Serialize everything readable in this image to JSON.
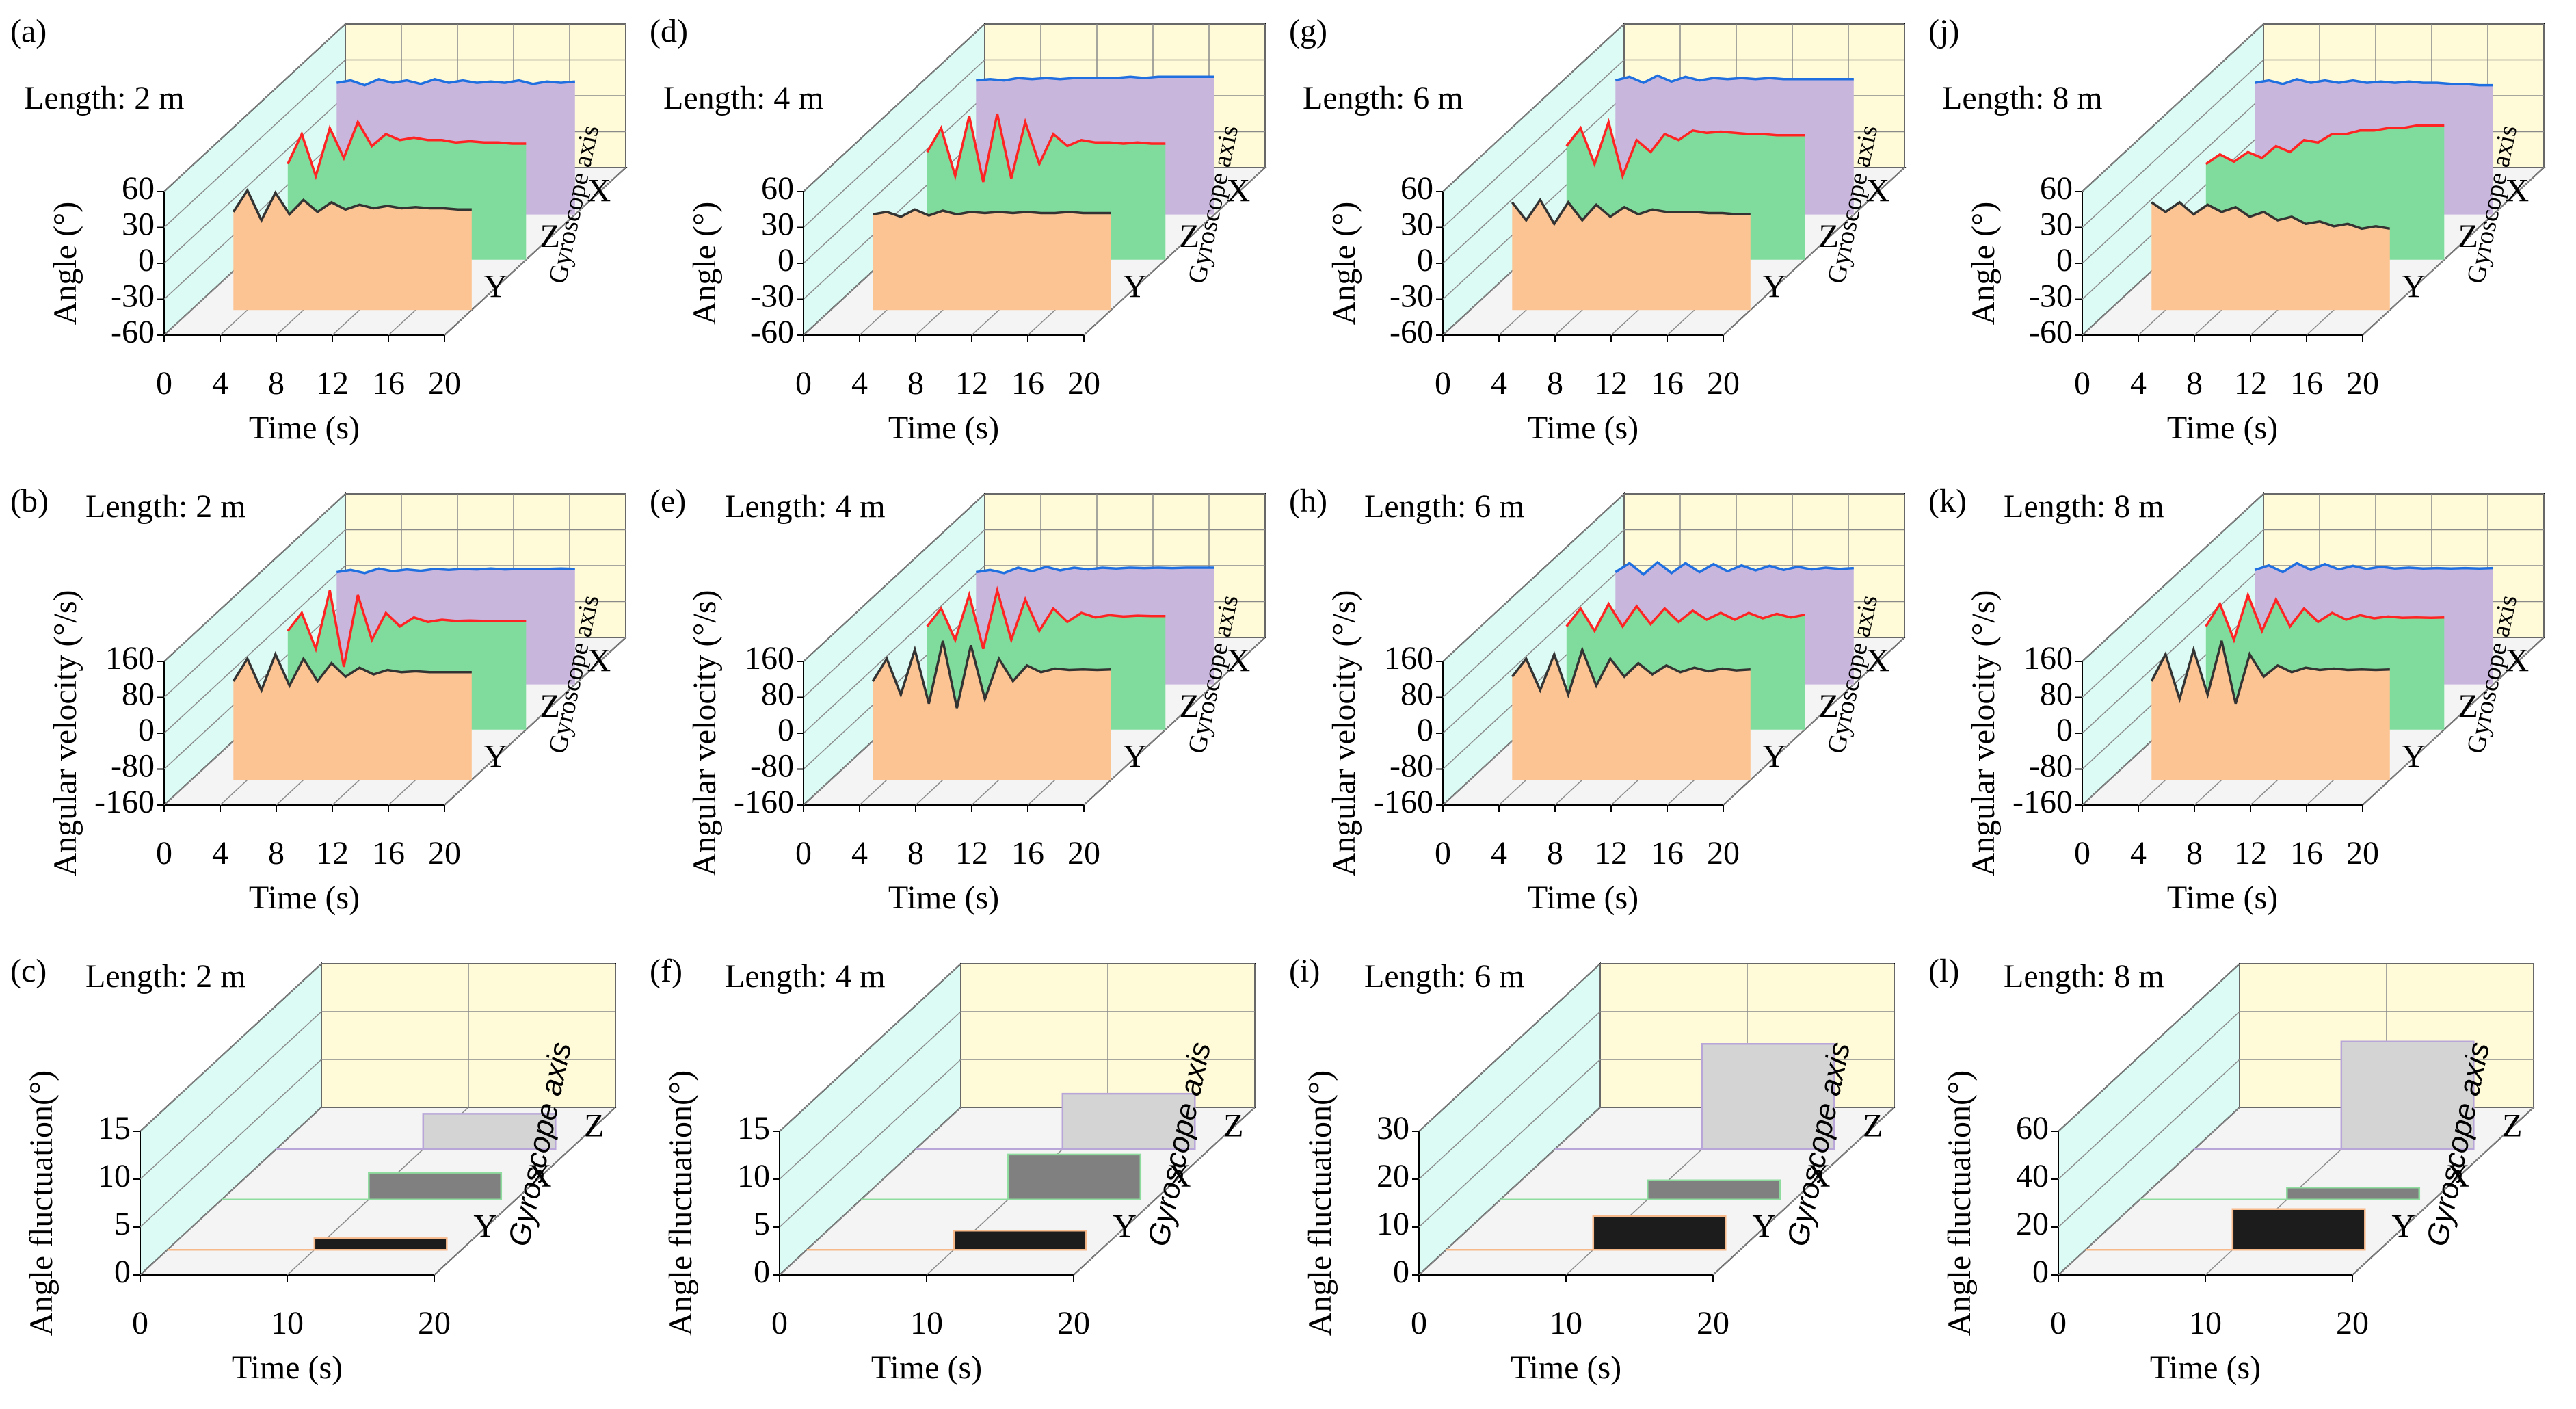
{
  "chart_data": [
    {
      "type": "line3d",
      "panel": "(a)",
      "subtitle": "Length: 2 m",
      "xlabel": "Time (s)",
      "ylabel": "Angle (°)",
      "zlabel": "Gyroscope axis",
      "xlim": [
        0,
        20
      ],
      "xticks": [
        0,
        4,
        8,
        12,
        16,
        20
      ],
      "ylim": [
        -60,
        60
      ],
      "yticks": [
        -60,
        -30,
        0,
        30,
        60
      ],
      "grid": true,
      "x": [
        3,
        4,
        5,
        6,
        7,
        8,
        9,
        10,
        11,
        12,
        13,
        14,
        15,
        16,
        17,
        18,
        19,
        20
      ],
      "series": [
        {
          "name": "Y",
          "color": "#333333",
          "fill": "#fdc493",
          "values": [
            22,
            40,
            15,
            38,
            20,
            32,
            22,
            30,
            24,
            28,
            25,
            27,
            25,
            26,
            25,
            25,
            24,
            24
          ]
        },
        {
          "name": "Z",
          "color": "#ff2424",
          "fill": "#80dc9c",
          "values": [
            20,
            45,
            10,
            50,
            25,
            55,
            35,
            45,
            40,
            42,
            40,
            40,
            38,
            39,
            38,
            38,
            37,
            37
          ]
        },
        {
          "name": "X",
          "color": "#1f6fe0",
          "fill": "#c9b6dd",
          "values": [
            50,
            52,
            48,
            53,
            50,
            52,
            49,
            53,
            50,
            52,
            50,
            51,
            50,
            52,
            49,
            51,
            50,
            51
          ]
        }
      ]
    },
    {
      "type": "line3d",
      "panel": "(b)",
      "subtitle": "Length: 2 m",
      "xlabel": "Time (s)",
      "ylabel": "Angular velocity (°/s)",
      "zlabel": "Gyroscope axis",
      "xlim": [
        0,
        20
      ],
      "xticks": [
        0,
        4,
        8,
        12,
        16,
        20
      ],
      "ylim": [
        -160,
        160
      ],
      "yticks": [
        -160,
        -80,
        0,
        80,
        160
      ],
      "grid": true,
      "x": [
        3,
        4,
        5,
        6,
        7,
        8,
        9,
        10,
        11,
        12,
        13,
        14,
        15,
        16,
        17,
        18,
        19,
        20
      ],
      "series": [
        {
          "name": "Y",
          "color": "#333333",
          "fill": "#fdc493",
          "values": [
            60,
            110,
            40,
            120,
            50,
            110,
            60,
            100,
            70,
            90,
            75,
            85,
            80,
            82,
            80,
            80,
            80,
            80
          ]
        },
        {
          "name": "Z",
          "color": "#ff2424",
          "fill": "#80dc9c",
          "values": [
            60,
            100,
            20,
            150,
            -20,
            140,
            40,
            100,
            70,
            90,
            80,
            85,
            82,
            83,
            82,
            82,
            82,
            82
          ]
        },
        {
          "name": "X",
          "color": "#1f6fe0",
          "fill": "#c9b6dd",
          "values": [
            90,
            95,
            88,
            98,
            92,
            96,
            93,
            97,
            95,
            97,
            96,
            98,
            96,
            97,
            97,
            97,
            98,
            97
          ]
        }
      ]
    },
    {
      "type": "bar3d",
      "panel": "(c)",
      "subtitle": "Length: 2 m",
      "xlabel": "Time (s)",
      "ylabel": "Angle  fluctuation(°)",
      "zlabel": "Gyroscope axis",
      "xlim": [
        0,
        20
      ],
      "xticks": [
        0,
        10,
        20
      ],
      "ylim": [
        0,
        15
      ],
      "yticks": [
        0,
        5,
        10,
        15
      ],
      "grid": true,
      "categories": [
        "Y",
        "X",
        "Z"
      ],
      "values": [
        1.2,
        2.8,
        3.7
      ],
      "colors": [
        "#1c1c1c",
        "#808080",
        "#d4d4d4"
      ],
      "guide_colors": [
        "#f7b98a",
        "#8fdc9f",
        "#b9a6d8"
      ]
    },
    {
      "type": "line3d",
      "panel": "(d)",
      "subtitle": "Length: 4 m",
      "xlabel": "Time (s)",
      "ylabel": "Angle (°)",
      "zlabel": "Gyroscope axis",
      "xlim": [
        0,
        20
      ],
      "xticks": [
        0,
        4,
        8,
        12,
        16,
        20
      ],
      "ylim": [
        -60,
        60
      ],
      "yticks": [
        -60,
        -30,
        0,
        30,
        60
      ],
      "grid": true,
      "x": [
        3,
        4,
        5,
        6,
        7,
        8,
        9,
        10,
        11,
        12,
        13,
        14,
        15,
        16,
        17,
        18,
        19,
        20
      ],
      "series": [
        {
          "name": "Y",
          "color": "#333333",
          "fill": "#fdc493",
          "values": [
            20,
            22,
            18,
            24,
            19,
            23,
            20,
            22,
            21,
            22,
            21,
            22,
            21,
            21,
            22,
            21,
            21,
            21
          ]
        },
        {
          "name": "Z",
          "color": "#ff2424",
          "fill": "#80dc9c",
          "values": [
            30,
            50,
            10,
            60,
            5,
            62,
            8,
            55,
            20,
            45,
            35,
            40,
            38,
            38,
            37,
            38,
            37,
            37
          ]
        },
        {
          "name": "X",
          "color": "#1f6fe0",
          "fill": "#c9b6dd",
          "values": [
            52,
            53,
            52,
            54,
            53,
            54,
            53,
            54,
            54,
            54,
            54,
            55,
            54,
            55,
            55,
            55,
            55,
            55
          ]
        }
      ]
    },
    {
      "type": "line3d",
      "panel": "(e)",
      "subtitle": "Length: 4 m",
      "xlabel": "Time (s)",
      "ylabel": "Angular velocity (°/s)",
      "zlabel": "Gyroscope axis",
      "xlim": [
        0,
        20
      ],
      "xticks": [
        0,
        4,
        8,
        12,
        16,
        20
      ],
      "ylim": [
        -160,
        160
      ],
      "yticks": [
        -160,
        -80,
        0,
        80,
        160
      ],
      "grid": true,
      "x": [
        3,
        4,
        5,
        6,
        7,
        8,
        9,
        10,
        11,
        12,
        13,
        14,
        15,
        16,
        17,
        18,
        19,
        20
      ],
      "series": [
        {
          "name": "Y",
          "color": "#333333",
          "fill": "#fdc493",
          "values": [
            60,
            110,
            30,
            130,
            10,
            150,
            0,
            140,
            20,
            110,
            60,
            95,
            80,
            88,
            85,
            86,
            85,
            86
          ]
        },
        {
          "name": "Z",
          "color": "#ff2424",
          "fill": "#80dc9c",
          "values": [
            70,
            110,
            40,
            140,
            20,
            150,
            40,
            130,
            60,
            110,
            80,
            100,
            90,
            95,
            92,
            94,
            93,
            93
          ]
        },
        {
          "name": "X",
          "color": "#1f6fe0",
          "fill": "#c9b6dd",
          "values": [
            90,
            95,
            88,
            100,
            92,
            102,
            94,
            100,
            96,
            100,
            98,
            100,
            99,
            100,
            99,
            100,
            100,
            100
          ]
        }
      ]
    },
    {
      "type": "bar3d",
      "panel": "(f)",
      "subtitle": "Length: 4 m",
      "xlabel": "Time (s)",
      "ylabel": "Angle  fluctuation(°)",
      "zlabel": "Gyroscope axis",
      "xlim": [
        0,
        20
      ],
      "xticks": [
        0,
        10,
        20
      ],
      "ylim": [
        0,
        15
      ],
      "yticks": [
        0,
        5,
        10,
        15
      ],
      "grid": true,
      "categories": [
        "Y",
        "X",
        "Z"
      ],
      "values": [
        2,
        4.7,
        5.8
      ],
      "colors": [
        "#1c1c1c",
        "#808080",
        "#d4d4d4"
      ],
      "guide_colors": [
        "#f7b98a",
        "#8fdc9f",
        "#b9a6d8"
      ]
    },
    {
      "type": "line3d",
      "panel": "(g)",
      "subtitle": "Length: 6 m",
      "xlabel": "Time (s)",
      "ylabel": "Angle (°)",
      "zlabel": "Gyroscope axis",
      "xlim": [
        0,
        20
      ],
      "xticks": [
        0,
        4,
        8,
        12,
        16,
        20
      ],
      "ylim": [
        -60,
        60
      ],
      "yticks": [
        -60,
        -30,
        0,
        30,
        60
      ],
      "grid": true,
      "x": [
        3,
        4,
        5,
        6,
        7,
        8,
        9,
        10,
        11,
        12,
        13,
        14,
        15,
        16,
        17,
        18,
        19,
        20
      ],
      "series": [
        {
          "name": "Y",
          "color": "#333333",
          "fill": "#fdc493",
          "values": [
            30,
            15,
            32,
            12,
            30,
            15,
            28,
            18,
            26,
            20,
            24,
            22,
            22,
            22,
            21,
            21,
            20,
            20
          ]
        },
        {
          "name": "Z",
          "color": "#ff2424",
          "fill": "#80dc9c",
          "values": [
            35,
            50,
            20,
            55,
            10,
            40,
            30,
            45,
            40,
            48,
            46,
            47,
            46,
            45,
            45,
            44,
            44,
            44
          ]
        },
        {
          "name": "X",
          "color": "#1f6fe0",
          "fill": "#c9b6dd",
          "values": [
            52,
            55,
            50,
            56,
            51,
            55,
            52,
            54,
            53,
            54,
            53,
            54,
            53,
            53,
            53,
            53,
            53,
            53
          ]
        }
      ]
    },
    {
      "type": "line3d",
      "panel": "(h)",
      "subtitle": "Length: 6 m",
      "xlabel": "Time (s)",
      "ylabel": "Angular velocity (°/s)",
      "zlabel": "Gyroscope axis",
      "xlim": [
        0,
        20
      ],
      "xticks": [
        0,
        4,
        8,
        12,
        16,
        20
      ],
      "ylim": [
        -160,
        160
      ],
      "yticks": [
        -160,
        -80,
        0,
        80,
        160
      ],
      "grid": true,
      "x": [
        3,
        4,
        5,
        6,
        7,
        8,
        9,
        10,
        11,
        12,
        13,
        14,
        15,
        16,
        17,
        18,
        19,
        20
      ],
      "series": [
        {
          "name": "Y",
          "color": "#333333",
          "fill": "#fdc493",
          "values": [
            70,
            110,
            40,
            120,
            30,
            130,
            50,
            110,
            70,
            100,
            75,
            95,
            80,
            90,
            82,
            88,
            84,
            86
          ]
        },
        {
          "name": "Z",
          "color": "#ff2424",
          "fill": "#80dc9c",
          "values": [
            70,
            110,
            60,
            120,
            70,
            115,
            75,
            110,
            80,
            105,
            85,
            100,
            85,
            100,
            88,
            98,
            90,
            96
          ]
        },
        {
          "name": "X",
          "color": "#1f6fe0",
          "fill": "#c9b6dd",
          "values": [
            90,
            110,
            85,
            112,
            88,
            110,
            90,
            108,
            92,
            105,
            94,
            104,
            95,
            102,
            96,
            100,
            97,
            99
          ]
        }
      ]
    },
    {
      "type": "bar3d",
      "panel": "(i)",
      "subtitle": "Length: 6 m",
      "xlabel": "Time (s)",
      "ylabel": "Angle  fluctuation(°)",
      "zlabel": "Gyroscope axis",
      "xlim": [
        0,
        20
      ],
      "xticks": [
        0,
        10,
        20
      ],
      "ylim": [
        0,
        30
      ],
      "yticks": [
        0,
        10,
        20,
        30
      ],
      "grid": true,
      "categories": [
        "Y",
        "X",
        "Z"
      ],
      "values": [
        7,
        4,
        22
      ],
      "colors": [
        "#1c1c1c",
        "#808080",
        "#d4d4d4"
      ],
      "guide_colors": [
        "#f7b98a",
        "#8fdc9f",
        "#b9a6d8"
      ]
    },
    {
      "type": "line3d",
      "panel": "(j)",
      "subtitle": "Length: 8 m",
      "xlabel": "Time (s)",
      "ylabel": "Angle (°)",
      "zlabel": "Gyroscope axis",
      "xlim": [
        0,
        20
      ],
      "xticks": [
        0,
        4,
        8,
        12,
        16,
        20
      ],
      "ylim": [
        -60,
        60
      ],
      "yticks": [
        -60,
        -30,
        0,
        30,
        60
      ],
      "grid": true,
      "x": [
        3,
        4,
        5,
        6,
        7,
        8,
        9,
        10,
        11,
        12,
        13,
        14,
        15,
        16,
        17,
        18,
        19,
        20
      ],
      "series": [
        {
          "name": "Y",
          "color": "#333333",
          "fill": "#fdc493",
          "values": [
            30,
            22,
            30,
            20,
            28,
            22,
            26,
            18,
            22,
            15,
            18,
            12,
            14,
            10,
            12,
            8,
            10,
            8
          ]
        },
        {
          "name": "Z",
          "color": "#ff2424",
          "fill": "#80dc9c",
          "values": [
            20,
            28,
            22,
            30,
            25,
            35,
            30,
            40,
            38,
            45,
            45,
            48,
            48,
            50,
            50,
            52,
            52,
            52
          ]
        },
        {
          "name": "X",
          "color": "#1f6fe0",
          "fill": "#c9b6dd",
          "values": [
            50,
            52,
            49,
            53,
            50,
            52,
            50,
            52,
            50,
            51,
            50,
            51,
            50,
            50,
            49,
            49,
            48,
            48
          ]
        }
      ]
    },
    {
      "type": "line3d",
      "panel": "(k)",
      "subtitle": "Length: 8 m",
      "xlabel": "Time (s)",
      "ylabel": "Angular velocity (°/s)",
      "zlabel": "Gyroscope axis",
      "xlim": [
        0,
        20
      ],
      "xticks": [
        0,
        4,
        8,
        12,
        16,
        20
      ],
      "ylim": [
        -160,
        160
      ],
      "yticks": [
        -160,
        -80,
        0,
        80,
        160
      ],
      "grid": true,
      "x": [
        3,
        4,
        5,
        6,
        7,
        8,
        9,
        10,
        11,
        12,
        13,
        14,
        15,
        16,
        17,
        18,
        19,
        20
      ],
      "series": [
        {
          "name": "Y",
          "color": "#333333",
          "fill": "#fdc493",
          "values": [
            60,
            120,
            20,
            130,
            30,
            150,
            10,
            120,
            70,
            95,
            80,
            90,
            85,
            88,
            85,
            86,
            85,
            86
          ]
        },
        {
          "name": "Z",
          "color": "#ff2424",
          "fill": "#80dc9c",
          "values": [
            70,
            120,
            40,
            140,
            60,
            130,
            70,
            110,
            80,
            100,
            85,
            95,
            88,
            92,
            89,
            90,
            89,
            90
          ]
        },
        {
          "name": "X",
          "color": "#1f6fe0",
          "fill": "#c9b6dd",
          "values": [
            95,
            105,
            90,
            110,
            95,
            108,
            96,
            104,
            97,
            102,
            98,
            100,
            98,
            99,
            98,
            99,
            98,
            99
          ]
        }
      ]
    },
    {
      "type": "bar3d",
      "panel": "(l)",
      "subtitle": "Length: 8 m",
      "xlabel": "Time (s)",
      "ylabel": "Angle  fluctuation(°)",
      "zlabel": "Gyroscope axis",
      "xlim": [
        0,
        20
      ],
      "xticks": [
        0,
        10,
        20
      ],
      "ylim": [
        0,
        60
      ],
      "yticks": [
        0,
        20,
        40,
        60
      ],
      "grid": true,
      "categories": [
        "Y",
        "X",
        "Z"
      ],
      "values": [
        17,
        5,
        45
      ],
      "colors": [
        "#1c1c1c",
        "#808080",
        "#d4d4d4"
      ],
      "guide_colors": [
        "#f7b98a",
        "#8fdc9f",
        "#b9a6d8"
      ]
    }
  ]
}
